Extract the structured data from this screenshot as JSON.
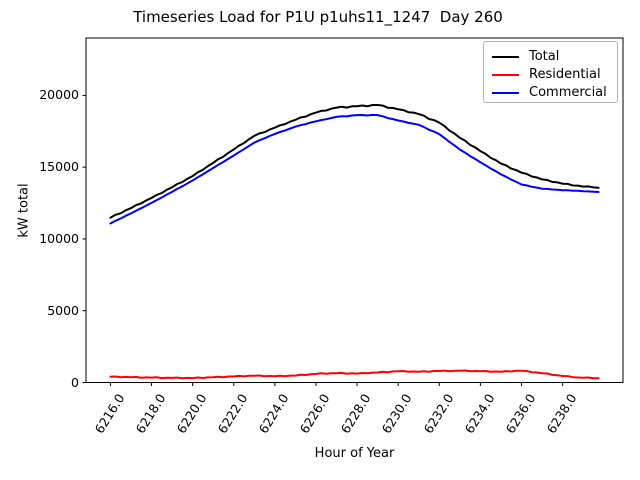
{
  "title": "Timeseries Load for P1U p1uhs11_1247  Day 260",
  "legend": {
    "position": "upper right",
    "items": [
      "Total",
      "Residential",
      "Commercial"
    ]
  },
  "chart_data": {
    "type": "line",
    "title": "Timeseries Load for P1U p1uhs11_1247  Day 260",
    "xlabel": "Hour of Year",
    "ylabel": "kW total",
    "xlim": [
      6214.8125,
      6240.9375
    ],
    "ylim": [
      0,
      24000
    ],
    "grid": false,
    "x_start": 6216.0,
    "x_step": 0.25,
    "x_tick_values": [
      6216,
      6218,
      6220,
      6222,
      6224,
      6226,
      6228,
      6230,
      6232,
      6234,
      6236,
      6238
    ],
    "x_tick_labels": [
      "6216.0",
      "6218.0",
      "6220.0",
      "6222.0",
      "6224.0",
      "6226.0",
      "6228.0",
      "6230.0",
      "6232.0",
      "6234.0",
      "6236.0",
      "6238.0"
    ],
    "y_tick_values": [
      0,
      5000,
      10000,
      15000,
      20000
    ],
    "y_tick_labels": [
      "0",
      "5000",
      "10000",
      "15000",
      "20000"
    ],
    "series": [
      {
        "name": "Total",
        "color": "#000000",
        "values": [
          11480,
          11680,
          11790,
          12000,
          12150,
          12360,
          12475,
          12690,
          12850,
          13070,
          13200,
          13430,
          13600,
          13830,
          13965,
          14200,
          14380,
          14645,
          14815,
          15085,
          15300,
          15565,
          15740,
          16010,
          16230,
          16500,
          16680,
          16955,
          17180,
          17355,
          17440,
          17620,
          17750,
          17920,
          18000,
          18175,
          18300,
          18460,
          18525,
          18690,
          18800,
          18920,
          18950,
          19075,
          19150,
          19210,
          19150,
          19240,
          19250,
          19300,
          19240,
          19330,
          19330,
          19290,
          19140,
          19120,
          19030,
          18980,
          18830,
          18800,
          18700,
          18590,
          18360,
          18270,
          18100,
          17870,
          17540,
          17330,
          17050,
          16850,
          16550,
          16370,
          16120,
          15935,
          15650,
          15485,
          15250,
          15125,
          14900,
          14790,
          14615,
          14530,
          14350,
          14280,
          14150,
          14110,
          13975,
          13940,
          13850,
          13835,
          13725,
          13715,
          13650,
          13660,
          13590,
          13570
        ]
      },
      {
        "name": "Residential",
        "color": "#ff0000",
        "values": [
          400,
          418,
          365,
          388,
          370,
          388,
          335,
          358,
          340,
          360,
          310,
          335,
          320,
          343,
          295,
          323,
          310,
          348,
          315,
          358,
          360,
          400,
          370,
          415,
          420,
          458,
          425,
          468,
          470,
          485,
          430,
          450,
          430,
          468,
          435,
          478,
          480,
          535,
          520,
          580,
          600,
          638,
          605,
          648,
          650,
          668,
          615,
          638,
          620,
          665,
          640,
          690,
          700,
          745,
          720,
          770,
          780,
          798,
          745,
          768,
          750,
          788,
          755,
          798,
          800,
          830,
          790,
          825,
          820,
          835,
          780,
          800,
          780,
          798,
          745,
          768,
          750,
          793,
          765,
          813,
          820,
          800,
          715,
          700,
          650,
          625,
          530,
          510,
          450,
          445,
          370,
          350,
          330,
          348,
          295,
          300
        ]
      },
      {
        "name": "Commercial",
        "color": "#0000ff",
        "values": [
          11080,
          11262,
          11425,
          11612,
          11780,
          11972,
          12140,
          12332,
          12510,
          12710,
          12890,
          13095,
          13280,
          13487,
          13670,
          13877,
          14070,
          14297,
          14500,
          14727,
          14940,
          15165,
          15370,
          15595,
          15810,
          16042,
          16255,
          16487,
          16710,
          16870,
          17010,
          17170,
          17320,
          17452,
          17565,
          17697,
          17820,
          17925,
          18005,
          18110,
          18200,
          18282,
          18345,
          18427,
          18500,
          18542,
          18535,
          18602,
          18630,
          18635,
          18600,
          18640,
          18630,
          18545,
          18420,
          18350,
          18250,
          18182,
          18085,
          18032,
          17950,
          17802,
          17605,
          17472,
          17300,
          17040,
          16750,
          16505,
          16230,
          16015,
          15770,
          15570,
          15340,
          15137,
          14905,
          14717,
          14500,
          14332,
          14135,
          13977,
          13795,
          13730,
          13635,
          13580,
          13500,
          13485,
          13445,
          13430,
          13400,
          13390,
          13355,
          13365,
          13320,
          13312,
          13295,
          13270
        ]
      }
    ]
  }
}
